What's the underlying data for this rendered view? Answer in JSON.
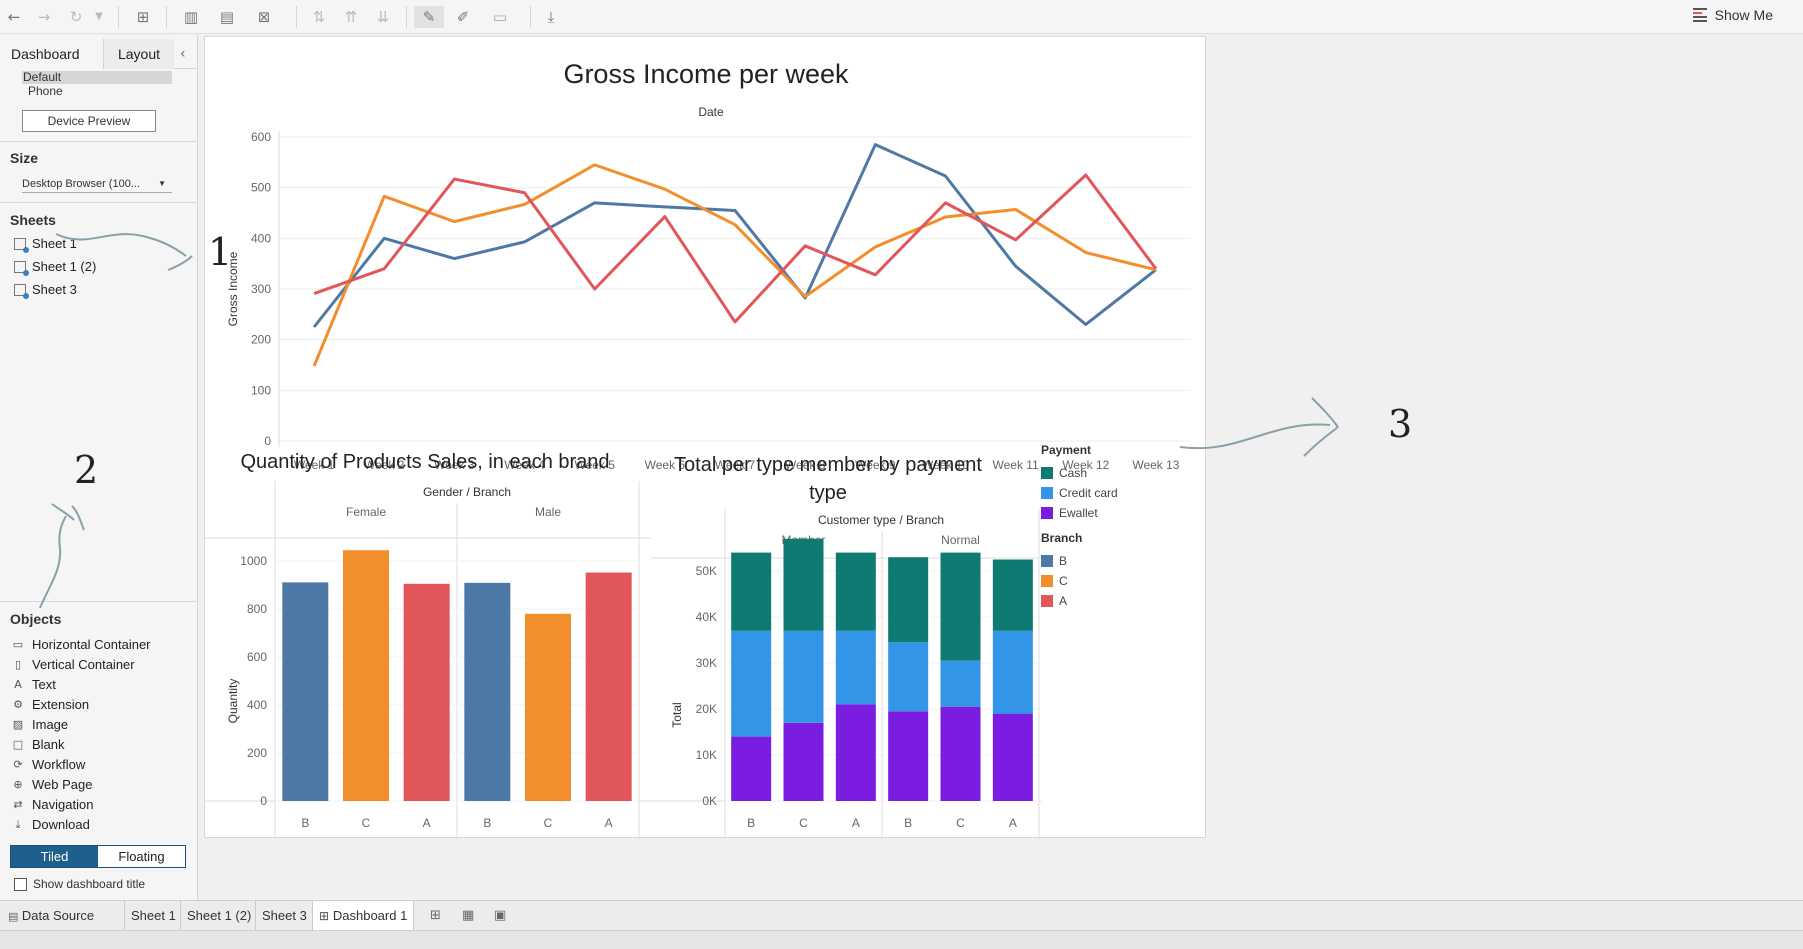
{
  "toolbar": {
    "buttons": [
      "undo-icon",
      "redo-icon",
      "redo-dropdown-icon",
      "new-datasource-icon",
      "new-worksheet-icon",
      "duplicate-icon",
      "clear-icon",
      "swap-icon",
      "sort-asc-icon",
      "sort-desc-icon",
      "highlight-icon",
      "annotate-icon",
      "fit-icon",
      "present-icon"
    ],
    "show_me": "Show Me"
  },
  "sidebar": {
    "tabs": {
      "dashboard": "Dashboard",
      "layout": "Layout"
    },
    "devices": {
      "default": "Default",
      "phone": "Phone"
    },
    "device_preview": "Device Preview",
    "size_label": "Size",
    "size_value": "Desktop Browser (100...",
    "sheets_label": "Sheets",
    "sheets": [
      "Sheet 1",
      "Sheet 1 (2)",
      "Sheet 3"
    ],
    "objects_label": "Objects",
    "objects": [
      {
        "icon": "▭",
        "label": "Horizontal Container"
      },
      {
        "icon": "▯",
        "label": "Vertical Container"
      },
      {
        "icon": "A",
        "label": "Text"
      },
      {
        "icon": "⚙",
        "label": "Extension"
      },
      {
        "icon": "▨",
        "label": "Image"
      },
      {
        "icon": "□",
        "label": "Blank"
      },
      {
        "icon": "⟳",
        "label": "Workflow"
      },
      {
        "icon": "⊕",
        "label": "Web Page"
      },
      {
        "icon": "⇄",
        "label": "Navigation"
      },
      {
        "icon": "⤓",
        "label": "Download"
      }
    ],
    "tiled": "Tiled",
    "floating": "Floating",
    "show_title": "Show dashboard title"
  },
  "annotations": [
    "1",
    "2",
    "3"
  ],
  "line_chart": {
    "title": "Gross Income per week",
    "xgroup": "Date",
    "ylabel": "Gross Income"
  },
  "bar_chart": {
    "title": "Quantity of Products Sales, in each brand",
    "group_header": "Gender / Branch",
    "groups": [
      "Female",
      "Male"
    ],
    "ylabel": "Quantity"
  },
  "stack_chart": {
    "title": "Total per type member by payment type",
    "group_header": "Customer type / Branch",
    "groups": [
      "Member",
      "Normal"
    ],
    "ylabel": "Total"
  },
  "legend": {
    "payment_title": "Payment",
    "payment": [
      {
        "name": "Cash",
        "color": "#0e7a72"
      },
      {
        "name": "Credit card",
        "color": "#3295e8"
      },
      {
        "name": "Ewallet",
        "color": "#7a1de0"
      }
    ],
    "branch_title": "Branch",
    "branch": [
      {
        "name": "B",
        "color": "#4e79a7"
      },
      {
        "name": "C",
        "color": "#f28e2b"
      },
      {
        "name": "A",
        "color": "#e15759"
      }
    ]
  },
  "chart_data": [
    {
      "type": "line",
      "title": "Gross Income per week",
      "xlabel": "Date",
      "ylabel": "Gross Income",
      "x": [
        "Week 1",
        "Week 2",
        "Week 3",
        "Week 4",
        "Week 5",
        "Week 6",
        "Week 7",
        "Week 8",
        "Week 9",
        "Week 10",
        "Week 11",
        "Week 12",
        "Week 13"
      ],
      "ylim": [
        0,
        600
      ],
      "yticks": [
        0,
        100,
        200,
        300,
        400,
        500,
        600
      ],
      "series": [
        {
          "name": "B",
          "color": "#4e79a7",
          "values": [
            225,
            400,
            360,
            393,
            470,
            462,
            455,
            282,
            585,
            523,
            345,
            230,
            338
          ]
        },
        {
          "name": "C",
          "color": "#f28e2b",
          "values": [
            148,
            483,
            433,
            467,
            545,
            497,
            427,
            285,
            383,
            442,
            457,
            372,
            338
          ]
        },
        {
          "name": "A",
          "color": "#e15759",
          "values": [
            291,
            340,
            517,
            490,
            300,
            443,
            235,
            385,
            328,
            470,
            397,
            525,
            340
          ]
        }
      ]
    },
    {
      "type": "bar",
      "title": "Quantity of Products Sales, in each brand",
      "ylabel": "Quantity",
      "ylim": [
        0,
        1100
      ],
      "yticks": [
        0,
        200,
        400,
        600,
        800,
        1000
      ],
      "groups": [
        {
          "name": "Female",
          "categories": [
            "B",
            "C",
            "A"
          ],
          "values": [
            911,
            1045,
            905
          ]
        },
        {
          "name": "Male",
          "categories": [
            "B",
            "C",
            "A"
          ],
          "values": [
            909,
            780,
            952
          ]
        }
      ]
    },
    {
      "type": "bar",
      "stacked": true,
      "title": "Total per type member by payment type",
      "ylabel": "Total",
      "ylim": [
        0,
        60000
      ],
      "yticks": [
        "0K",
        "10K",
        "20K",
        "30K",
        "40K",
        "50K"
      ],
      "series_names": [
        "Ewallet",
        "Credit card",
        "Cash"
      ],
      "groups": [
        {
          "name": "Member",
          "categories": [
            "B",
            "C",
            "A"
          ],
          "stacks": [
            [
              14000,
              23000,
              17000
            ],
            [
              17000,
              20000,
              20000
            ],
            [
              21000,
              16000,
              17000
            ]
          ]
        },
        {
          "name": "Normal",
          "categories": [
            "B",
            "C",
            "A"
          ],
          "stacks": [
            [
              19500,
              15000,
              18500
            ],
            [
              20500,
              10000,
              23500
            ],
            [
              19000,
              18000,
              15500
            ]
          ]
        }
      ]
    }
  ],
  "bottom_tabs": {
    "data_source": "Data Source",
    "sheets": [
      "Sheet 1",
      "Sheet 1 (2)",
      "Sheet 3",
      "Dashboard 1"
    ]
  }
}
